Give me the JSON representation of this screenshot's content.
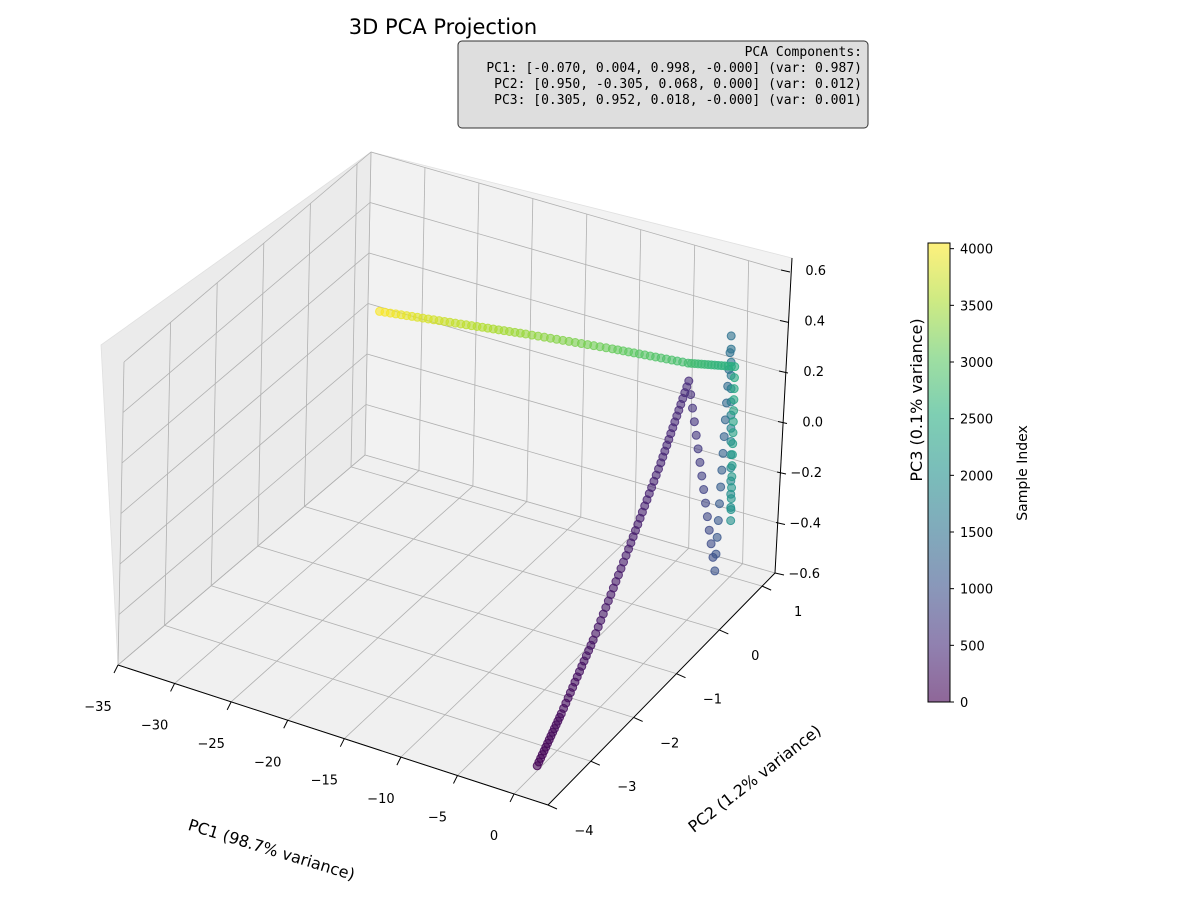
{
  "chart_data": {
    "type": "scatter",
    "title": "3D PCA Projection",
    "xlabel": "PC1 (98.7% variance)",
    "ylabel": "PC2 (1.2% variance)",
    "zlabel": "PC3 (0.1% variance)",
    "xlim": [
      -35,
      3
    ],
    "ylim": [
      -4,
      1.3
    ],
    "zlim": [
      -0.6,
      0.6
    ],
    "xticks": [
      "−35",
      "−30",
      "−25",
      "−20",
      "−15",
      "−10",
      "−5",
      "0"
    ],
    "yticks": [
      "−4",
      "−3",
      "−2",
      "−1",
      "0",
      "1"
    ],
    "zticks": [
      "−0.6",
      "−0.4",
      "−0.2",
      "0.0",
      "0.2",
      "0.4",
      "0.6"
    ],
    "grid": true,
    "colormap": "viridis",
    "point_alpha": 0.6,
    "colorbar": {
      "label": "Sample Index",
      "range": [
        0,
        4050
      ],
      "ticks": [
        "0",
        "500",
        "1000",
        "1500",
        "2000",
        "2500",
        "3000",
        "3500",
        "4000"
      ]
    },
    "annotation": {
      "lines": [
        "PCA Components:",
        "PC1: [-0.070, 0.004, 0.998, -0.000] (var: 0.987)",
        "PC2: [0.950, -0.305, 0.068, 0.000] (var: 0.012)",
        "PC3: [0.305, 0.952, 0.018, -0.000] (var: 0.001)"
      ],
      "placement": "top-right"
    },
    "series": [
      {
        "description_points": "approximate data trend points",
        "points": [
          {
            "x": 0.5,
            "y": -3.6,
            "z": -0.55,
            "c": 0
          },
          {
            "x": 0.3,
            "y": -3.0,
            "z": -0.45,
            "c": 100
          },
          {
            "x": 0.0,
            "y": -2.2,
            "z": -0.3,
            "c": 200
          },
          {
            "x": -0.4,
            "y": -1.3,
            "z": -0.1,
            "c": 300
          },
          {
            "x": -0.7,
            "y": -0.5,
            "z": 0.1,
            "c": 400
          },
          {
            "x": -1.0,
            "y": 0.2,
            "z": 0.3,
            "c": 500
          },
          {
            "x": -0.6,
            "y": 0.8,
            "z": -0.55,
            "c": 1000
          },
          {
            "x": -0.3,
            "y": 1.0,
            "z": 0.35,
            "c": 1500
          },
          {
            "x": -0.4,
            "y": 1.1,
            "z": -0.4,
            "c": 2000
          },
          {
            "x": -0.5,
            "y": 1.15,
            "z": 0.2,
            "c": 2500
          },
          {
            "x": -5,
            "y": 1.2,
            "z": 0.15,
            "c": 2800
          },
          {
            "x": -12,
            "y": 1.2,
            "z": 0.12,
            "c": 3100
          },
          {
            "x": -20,
            "y": 1.2,
            "z": 0.08,
            "c": 3400
          },
          {
            "x": -27,
            "y": 1.2,
            "z": 0.04,
            "c": 3700
          },
          {
            "x": -34,
            "y": 1.2,
            "z": 0.0,
            "c": 4050
          }
        ]
      }
    ]
  }
}
